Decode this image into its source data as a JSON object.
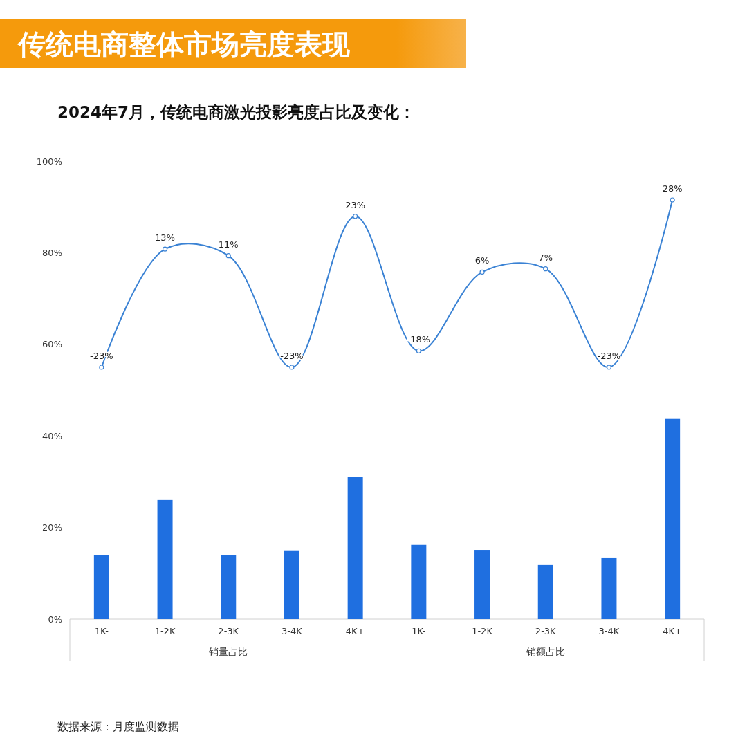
{
  "chart_data": {
    "type": "bar",
    "title": "传统电商整体市场亮度表现",
    "subtitle": "2024年7月，传统电商激光投影亮度占比及变化：",
    "categories": [
      "1K-",
      "1-2K",
      "2-3K",
      "3-4K",
      "4K+",
      "1K-",
      "1-2K",
      "2-3K",
      "3-4K",
      "4K+"
    ],
    "series": [
      {
        "color": "#1f6fe0",
        "values": [
          13.9,
          26.0,
          14.0,
          15.0,
          31.1,
          16.2,
          15.1,
          11.8,
          13.3,
          43.7
        ]
      },
      {
        "type": "line",
        "axis": "y2",
        "color": "#3a82d4",
        "marker": "circle",
        "values": [
          -23,
          13,
          11,
          -23,
          23,
          -18,
          6,
          7,
          -23,
          28
        ],
        "value_labels": [
          "-23%",
          "13%",
          "11%",
          "-23%",
          "23%",
          "-18%",
          "6%",
          "7%",
          "-23%",
          "28%"
        ]
      }
    ],
    "ylim": [
      0,
      100
    ],
    "yticks": [
      {
        "value": 0,
        "label": "0%"
      },
      {
        "value": 20,
        "label": "20%"
      },
      {
        "value": 40,
        "label": "40%"
      },
      {
        "value": 60,
        "label": "60%"
      },
      {
        "value": 80,
        "label": "80%"
      },
      {
        "value": 100,
        "label": "100%"
      }
    ],
    "annotations": [
      "销量占比",
      "销额占比",
      "数据来源：月度监测数据"
    ]
  }
}
